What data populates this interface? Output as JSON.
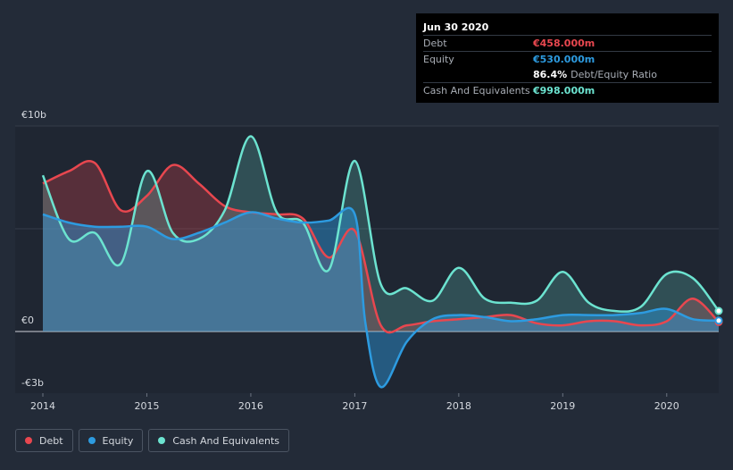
{
  "tooltip": {
    "date": "Jun 30 2020",
    "debt_label": "Debt",
    "debt_value": "€458.000m",
    "equity_label": "Equity",
    "equity_value": "€530.000m",
    "ratio_value": "86.4%",
    "ratio_label": "Debt/Equity Ratio",
    "cash_label": "Cash And Equivalents",
    "cash_value": "€998.000m"
  },
  "legend": [
    {
      "label": "Debt",
      "color": "#e8474f"
    },
    {
      "label": "Equity",
      "color": "#2d9be0"
    },
    {
      "label": "Cash And Equivalents",
      "color": "#6ce3d0"
    }
  ],
  "chart_data": {
    "type": "area",
    "title": "",
    "xlabel": "",
    "ylabel": "",
    "xlim": [
      2014,
      2020.5
    ],
    "ylim": [
      -3,
      10
    ],
    "y_ticks": [
      {
        "value": 10,
        "label": "€10b"
      },
      {
        "value": 0,
        "label": "€0"
      },
      {
        "value": -3,
        "label": "-€3b"
      }
    ],
    "x_ticks": [
      {
        "value": 2014,
        "label": "2014"
      },
      {
        "value": 2015,
        "label": "2015"
      },
      {
        "value": 2016,
        "label": "2016"
      },
      {
        "value": 2017,
        "label": "2017"
      },
      {
        "value": 2018,
        "label": "2018"
      },
      {
        "value": 2019,
        "label": "2019"
      },
      {
        "value": 2020,
        "label": "2020"
      }
    ],
    "unit": "€ billions",
    "series": [
      {
        "name": "Debt",
        "color": "#e8474f",
        "x": [
          2014,
          2014.25,
          2014.5,
          2014.75,
          2015,
          2015.25,
          2015.5,
          2015.75,
          2016,
          2016.25,
          2016.5,
          2016.75,
          2017,
          2017.25,
          2017.5,
          2017.75,
          2018,
          2018.25,
          2018.5,
          2018.75,
          2019,
          2019.25,
          2019.5,
          2019.75,
          2020,
          2020.25,
          2020.5
        ],
        "values": [
          7.2,
          7.8,
          8.2,
          5.9,
          6.6,
          8.1,
          7.2,
          6.1,
          5.8,
          5.7,
          5.5,
          3.6,
          4.9,
          0.3,
          0.3,
          0.5,
          0.6,
          0.7,
          0.8,
          0.4,
          0.3,
          0.5,
          0.5,
          0.3,
          0.5,
          1.6,
          0.46
        ]
      },
      {
        "name": "Equity",
        "color": "#2d9be0",
        "x": [
          2014,
          2014.25,
          2014.5,
          2014.75,
          2015,
          2015.25,
          2015.5,
          2015.75,
          2016,
          2016.25,
          2016.5,
          2016.75,
          2017,
          2017.1,
          2017.25,
          2017.5,
          2017.75,
          2018,
          2018.25,
          2018.5,
          2018.75,
          2019,
          2019.25,
          2019.5,
          2019.75,
          2020,
          2020.25,
          2020.5
        ],
        "values": [
          5.7,
          5.3,
          5.1,
          5.1,
          5.1,
          4.5,
          4.8,
          5.3,
          5.8,
          5.5,
          5.3,
          5.4,
          5.7,
          0.5,
          -2.7,
          -0.5,
          0.6,
          0.8,
          0.7,
          0.5,
          0.6,
          0.8,
          0.8,
          0.8,
          0.9,
          1.1,
          0.6,
          0.53
        ]
      },
      {
        "name": "Cash And Equivalents",
        "color": "#6ce3d0",
        "x": [
          2014,
          2014.25,
          2014.5,
          2014.75,
          2015,
          2015.25,
          2015.5,
          2015.75,
          2016,
          2016.25,
          2016.5,
          2016.75,
          2017,
          2017.25,
          2017.5,
          2017.75,
          2018,
          2018.25,
          2018.5,
          2018.75,
          2019,
          2019.25,
          2019.5,
          2019.75,
          2020,
          2020.25,
          2020.5
        ],
        "values": [
          7.6,
          4.5,
          4.8,
          3.3,
          7.8,
          4.8,
          4.5,
          5.9,
          9.5,
          5.8,
          5.3,
          3.0,
          8.3,
          2.3,
          2.1,
          1.5,
          3.1,
          1.6,
          1.4,
          1.5,
          2.9,
          1.4,
          1.0,
          1.2,
          2.8,
          2.6,
          1.0
        ]
      }
    ]
  }
}
